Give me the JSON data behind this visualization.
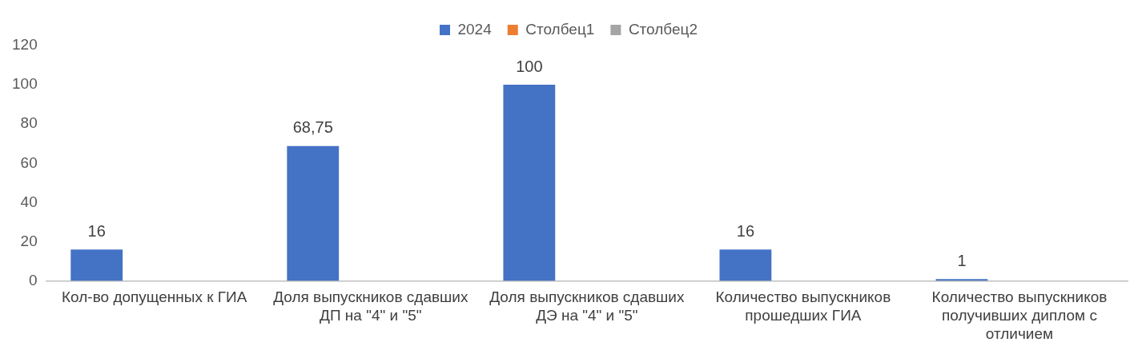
{
  "chart_data": {
    "type": "bar",
    "categories": [
      "Кол-во допущенных к ГИА",
      "Доля выпускников сдавших ДП на \"4\" и \"5\"",
      "Доля выпускников сдавших ДЭ на \"4\" и \"5\"",
      "Количество выпускников прошедших ГИА",
      "Количество выпускников получивших диплом с отличием"
    ],
    "series": [
      {
        "name": "2024",
        "color": "#4472c4",
        "values": [
          16,
          68.75,
          100,
          16,
          1
        ],
        "value_labels": [
          "16",
          "68,75",
          "100",
          "16",
          "1"
        ]
      },
      {
        "name": "Столбец1",
        "color": "#ed7d31",
        "values": [
          null,
          null,
          null,
          null,
          null
        ]
      },
      {
        "name": "Столбец2",
        "color": "#a5a5a5",
        "values": [
          null,
          null,
          null,
          null,
          null
        ]
      }
    ],
    "ylim": [
      0,
      120
    ],
    "yticks": [
      0,
      20,
      40,
      60,
      80,
      100,
      120
    ],
    "grid": false,
    "legend": "top"
  }
}
